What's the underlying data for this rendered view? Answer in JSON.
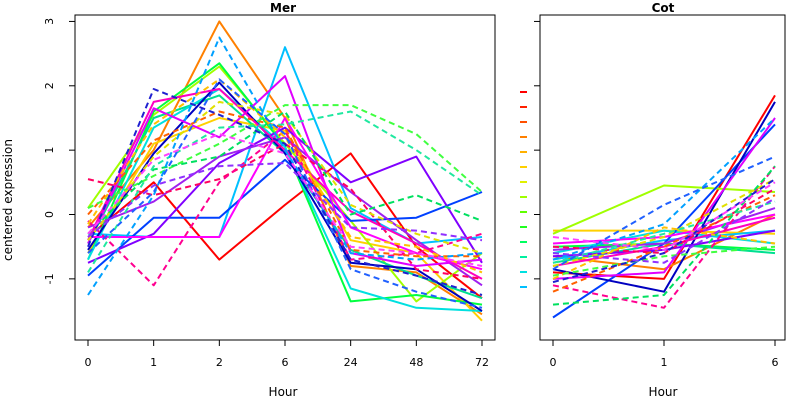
{
  "chart_data": [
    {
      "type": "line",
      "title": "Mer",
      "xlabel": "Hour",
      "ylabel": "centered expression",
      "categories": [
        "0",
        "1",
        "2",
        "6",
        "24",
        "48",
        "72"
      ],
      "ylim": [
        -1.95,
        3.1
      ],
      "yticks": [
        "-1",
        "0",
        "1",
        "2",
        "3"
      ],
      "series": [
        {
          "values": [
            -0.35,
            0.5,
            -0.7,
            0.15,
            0.95,
            -0.5,
            -1.3
          ],
          "color": "#ff0000",
          "dash": false
        },
        {
          "values": [
            -0.2,
            1.0,
            3.0,
            1.5,
            -0.8,
            -0.9,
            -1.55
          ],
          "color": "#ff8000",
          "dash": false
        },
        {
          "values": [
            -0.6,
            1.1,
            1.5,
            1.3,
            -0.4,
            -0.6,
            -1.65
          ],
          "color": "#ffd000",
          "dash": false
        },
        {
          "values": [
            0.1,
            1.55,
            2.3,
            1.1,
            -0.1,
            -1.35,
            -0.6
          ],
          "color": "#a0ff00",
          "dash": false
        },
        {
          "values": [
            -0.7,
            1.6,
            2.35,
            1.05,
            -1.35,
            -1.25,
            -1.4
          ],
          "color": "#00ff40",
          "dash": false
        },
        {
          "values": [
            -0.45,
            1.5,
            1.85,
            0.95,
            -0.55,
            -0.95,
            -1.3
          ],
          "color": "#00e090",
          "dash": false
        },
        {
          "values": [
            -0.7,
            1.35,
            1.95,
            1.05,
            -1.15,
            -1.45,
            -1.5
          ],
          "color": "#00e0e0",
          "dash": false
        },
        {
          "values": [
            -0.3,
            -0.35,
            -0.35,
            2.6,
            0.1,
            -0.45,
            -0.35
          ],
          "color": "#00c0ff",
          "dash": false
        },
        {
          "values": [
            -0.95,
            -0.05,
            -0.05,
            0.85,
            -0.1,
            -0.05,
            0.35
          ],
          "color": "#0040ff",
          "dash": false
        },
        {
          "values": [
            -0.55,
            0.95,
            2.05,
            0.95,
            -0.75,
            -0.85,
            -1.5
          ],
          "color": "#0000c0",
          "dash": false
        },
        {
          "values": [
            -0.75,
            -0.3,
            0.8,
            1.35,
            0.5,
            0.9,
            -0.75
          ],
          "color": "#8000ff",
          "dash": false
        },
        {
          "values": [
            -0.2,
            0.2,
            0.9,
            1.2,
            0.35,
            -0.4,
            -1.1
          ],
          "color": "#a020f0",
          "dash": false
        },
        {
          "values": [
            -0.45,
            1.65,
            1.2,
            2.15,
            -0.6,
            -0.8,
            -0.7
          ],
          "color": "#e000ff",
          "dash": false
        },
        {
          "values": [
            -0.4,
            1.75,
            1.95,
            1.0,
            0.05,
            -0.45,
            -1.0
          ],
          "color": "#ff00c0",
          "dash": false
        },
        {
          "values": [
            -0.35,
            -0.35,
            -0.35,
            1.5,
            -0.2,
            -0.6,
            -0.85
          ],
          "color": "#ff00ff",
          "dash": false
        },
        {
          "values": [
            0.55,
            0.3,
            0.55,
            1.1,
            0.4,
            -0.85,
            -1.0
          ],
          "color": "#ff0060",
          "dash": true
        },
        {
          "values": [
            -0.1,
            -1.1,
            0.5,
            1.3,
            -0.7,
            -0.6,
            -0.3
          ],
          "color": "#ff0090",
          "dash": true
        },
        {
          "values": [
            0.0,
            1.15,
            1.6,
            1.35,
            -0.55,
            -0.65,
            -0.65
          ],
          "color": "#ff6000",
          "dash": true
        },
        {
          "values": [
            -0.15,
            1.4,
            2.1,
            1.2,
            -0.35,
            -0.5,
            -0.9
          ],
          "color": "#ffc000",
          "dash": true
        },
        {
          "values": [
            -0.4,
            0.9,
            1.75,
            1.55,
            0.15,
            -0.3,
            -0.6
          ],
          "color": "#e0e000",
          "dash": true
        },
        {
          "values": [
            0.1,
            0.6,
            1.1,
            1.7,
            1.7,
            1.25,
            0.35
          ],
          "color": "#40ff40",
          "dash": true
        },
        {
          "values": [
            -0.3,
            0.7,
            0.9,
            1.6,
            0.0,
            0.3,
            -0.1
          ],
          "color": "#00e060",
          "dash": true
        },
        {
          "values": [
            -0.9,
            0.75,
            1.35,
            1.4,
            1.6,
            1.0,
            0.3
          ],
          "color": "#20e8a0",
          "dash": true
        },
        {
          "values": [
            -1.25,
            0.3,
            2.75,
            1.0,
            -0.6,
            -0.7,
            -0.6
          ],
          "color": "#00a0ff",
          "dash": true
        },
        {
          "values": [
            -0.6,
            0.35,
            2.1,
            1.25,
            -0.85,
            -1.2,
            -1.45
          ],
          "color": "#2060ff",
          "dash": true
        },
        {
          "values": [
            -0.5,
            1.95,
            1.55,
            1.1,
            -0.7,
            -0.95,
            -1.25
          ],
          "color": "#2020d0",
          "dash": true
        },
        {
          "values": [
            -0.35,
            0.45,
            0.75,
            0.8,
            -0.2,
            -0.25,
            -0.4
          ],
          "color": "#9030ff",
          "dash": true
        },
        {
          "values": [
            -0.3,
            0.85,
            1.25,
            0.95,
            -0.5,
            -0.6,
            -0.8
          ],
          "color": "#ff40ff",
          "dash": true
        }
      ]
    },
    {
      "type": "line",
      "title": "Cot",
      "xlabel": "Hour",
      "categories": [
        "0",
        "1",
        "6"
      ],
      "ylim": [
        -1.95,
        3.1
      ],
      "series": [
        {
          "values": [
            -0.9,
            -1.0,
            1.85
          ],
          "color": "#ff0000",
          "dash": false
        },
        {
          "values": [
            -0.65,
            -0.85,
            0.0
          ],
          "color": "#ff8000",
          "dash": false
        },
        {
          "values": [
            -0.25,
            -0.25,
            -0.3
          ],
          "color": "#ffd000",
          "dash": false
        },
        {
          "values": [
            -0.3,
            0.45,
            0.35
          ],
          "color": "#a0ff00",
          "dash": false
        },
        {
          "values": [
            -0.5,
            -0.45,
            -0.55
          ],
          "color": "#00ff40",
          "dash": false
        },
        {
          "values": [
            -0.75,
            -0.45,
            -0.6
          ],
          "color": "#00e090",
          "dash": false
        },
        {
          "values": [
            -0.6,
            -0.25,
            -0.45
          ],
          "color": "#00e0e0",
          "dash": false
        },
        {
          "values": [
            -0.7,
            -0.4,
            -0.25
          ],
          "color": "#00c0ff",
          "dash": false
        },
        {
          "values": [
            -1.6,
            -0.45,
            1.4
          ],
          "color": "#0040ff",
          "dash": false
        },
        {
          "values": [
            -0.85,
            -1.2,
            1.75
          ],
          "color": "#0000c0",
          "dash": false
        },
        {
          "values": [
            -0.65,
            -0.55,
            -0.25
          ],
          "color": "#8000ff",
          "dash": false
        },
        {
          "values": [
            -0.55,
            -0.45,
            0.1
          ],
          "color": "#a020f0",
          "dash": false
        },
        {
          "values": [
            -1.0,
            -0.9,
            1.5
          ],
          "color": "#e000ff",
          "dash": false
        },
        {
          "values": [
            -0.8,
            -0.5,
            -0.05
          ],
          "color": "#ff00c0",
          "dash": false
        },
        {
          "values": [
            -0.45,
            -0.35,
            0.0
          ],
          "color": "#ff00ff",
          "dash": false
        },
        {
          "values": [
            -0.5,
            -0.6,
            0.4
          ],
          "color": "#ff0060",
          "dash": true
        },
        {
          "values": [
            -1.1,
            -1.45,
            0.75
          ],
          "color": "#ff0090",
          "dash": true
        },
        {
          "values": [
            -1.2,
            -0.5,
            0.3
          ],
          "color": "#ff6000",
          "dash": true
        },
        {
          "values": [
            -1.0,
            -0.2,
            -0.45
          ],
          "color": "#ffc000",
          "dash": true
        },
        {
          "values": [
            -0.8,
            -0.35,
            0.55
          ],
          "color": "#e0e000",
          "dash": true
        },
        {
          "values": [
            -0.95,
            -0.65,
            -0.5
          ],
          "color": "#40ff40",
          "dash": true
        },
        {
          "values": [
            -1.4,
            -1.25,
            0.75
          ],
          "color": "#00e060",
          "dash": true
        },
        {
          "values": [
            -0.75,
            -0.3,
            0.2
          ],
          "color": "#20e8a0",
          "dash": true
        },
        {
          "values": [
            -0.7,
            -0.15,
            1.5
          ],
          "color": "#00a0ff",
          "dash": true
        },
        {
          "values": [
            -0.85,
            0.15,
            0.9
          ],
          "color": "#2060ff",
          "dash": true
        },
        {
          "values": [
            -1.05,
            -0.6,
            0.55
          ],
          "color": "#2020d0",
          "dash": true
        },
        {
          "values": [
            -0.6,
            -0.75,
            0.25
          ],
          "color": "#9030ff",
          "dash": true
        },
        {
          "values": [
            -0.35,
            -0.55,
            0.5
          ],
          "color": "#ff40ff",
          "dash": true
        }
      ]
    }
  ],
  "legend": {
    "colors": [
      "#ff0000",
      "#ff2000",
      "#ff5000",
      "#ff8000",
      "#ffb000",
      "#ffd000",
      "#e0f000",
      "#a0ff00",
      "#60ff00",
      "#20ff20",
      "#00ff60",
      "#00f0a0",
      "#00e0e0",
      "#00c0ff"
    ]
  }
}
